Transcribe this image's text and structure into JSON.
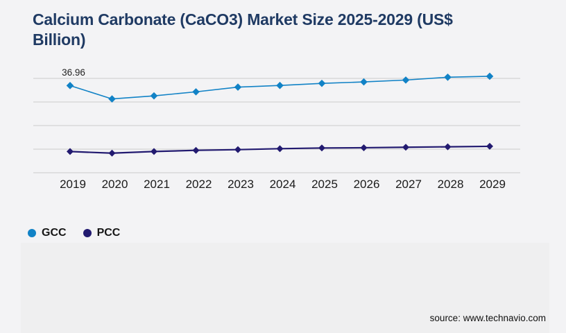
{
  "title": {
    "full": "Calcium Carbonate (CaCO3) Market Size 2025-2029 (US$ Billion)",
    "line1": "Calcium Carbonate (CaCO3) Market Size 2025-2029 (US$",
    "line2": "Billion)",
    "color": "#1f3a63"
  },
  "chart_data": {
    "type": "line",
    "title": "Calcium Carbonate (CaCO3) Market Size 2025-2029 (US$ Billion)",
    "categories": [
      "2019",
      "2020",
      "2021",
      "2022",
      "2023",
      "2024",
      "2025",
      "2026",
      "2027",
      "2028",
      "2029"
    ],
    "series": [
      {
        "name": "GCC",
        "color": "#1182c6",
        "marker": "diamond",
        "values": [
          36.96,
          31.3,
          32.6,
          34.3,
          36.3,
          37.0,
          37.9,
          38.5,
          39.3,
          40.5,
          40.9
        ]
      },
      {
        "name": "PCC",
        "color": "#221a70",
        "marker": "diamond",
        "values": [
          9.0,
          8.3,
          9.0,
          9.5,
          9.8,
          10.2,
          10.5,
          10.6,
          10.8,
          11.0,
          11.2
        ]
      }
    ],
    "data_labels": [
      {
        "series": "GCC",
        "index": 0,
        "text": "36.96"
      }
    ],
    "xlabel": "",
    "ylabel": "",
    "ylim": [
      0,
      40
    ],
    "gridline_values": [
      0,
      10,
      20,
      30,
      40
    ],
    "grid": true,
    "y_axis_labels_shown": false,
    "legend_position": "bottom-left",
    "gridline_color": "#cbcbcb",
    "axis_label_color": "#1a1a1a"
  },
  "legend": {
    "items": [
      {
        "label": "GCC",
        "color": "#1182c6"
      },
      {
        "label": "PCC",
        "color": "#221a70"
      }
    ]
  },
  "source": {
    "text": "source: www.technavio.com"
  },
  "page": {
    "background": "#f3f3f5",
    "panel_color": "#efeff0"
  }
}
